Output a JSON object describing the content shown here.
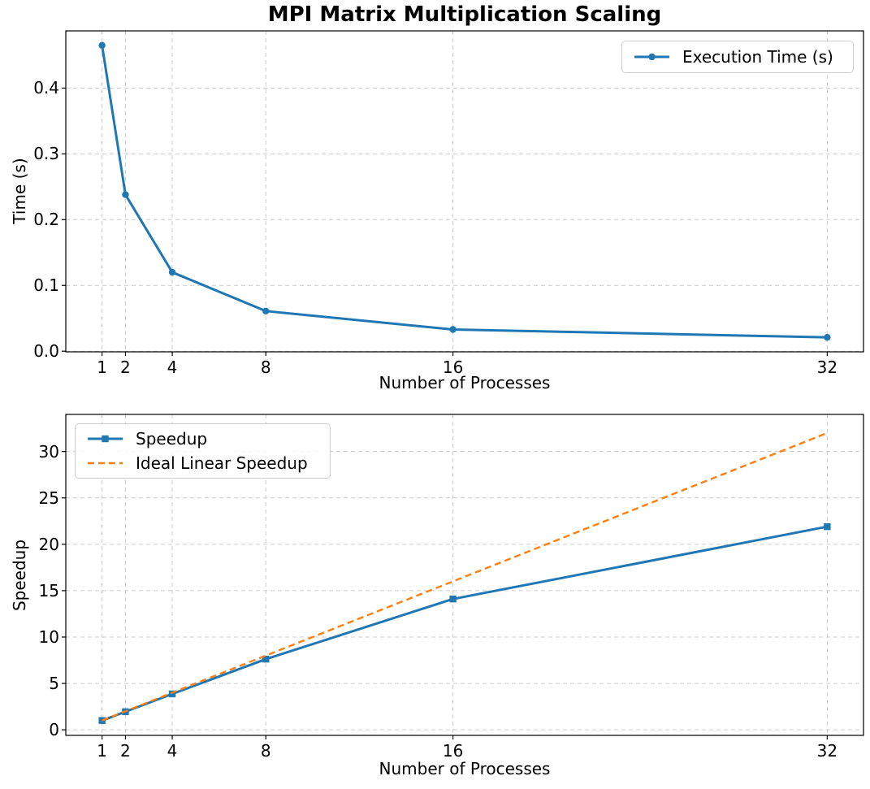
{
  "figure": {
    "title": "MPI Matrix Multiplication Scaling",
    "colors": {
      "series_blue": "#1f77b4",
      "series_orange": "#ff7f0e",
      "grid": "#cccccc",
      "spine": "#000000",
      "background": "#ffffff"
    }
  },
  "chart_data": [
    {
      "id": "time",
      "type": "line",
      "title": "MPI Matrix Multiplication Scaling",
      "xlabel": "Number of Processes",
      "ylabel": "Time (s)",
      "x": [
        1,
        2,
        4,
        8,
        16,
        32
      ],
      "xtick_labels": [
        "1",
        "2",
        "4",
        "8",
        "16",
        "32"
      ],
      "yticks": [
        0.0,
        0.1,
        0.2,
        0.3,
        0.4
      ],
      "ytick_labels": [
        "0.0",
        "0.1",
        "0.2",
        "0.3",
        "0.4"
      ],
      "xlim": [
        -0.55,
        33.55
      ],
      "ylim": [
        -0.001,
        0.487
      ],
      "grid": true,
      "legend_position": "upper right",
      "series": [
        {
          "name": "Execution Time (s)",
          "values": [
            0.465,
            0.238,
            0.12,
            0.061,
            0.033,
            0.021
          ],
          "color": "#1f77b4",
          "marker": "circle",
          "style": "solid"
        }
      ]
    },
    {
      "id": "speedup",
      "type": "line",
      "title": "",
      "xlabel": "Number of Processes",
      "ylabel": "Speedup",
      "x": [
        1,
        2,
        4,
        8,
        16,
        32
      ],
      "xtick_labels": [
        "1",
        "2",
        "4",
        "8",
        "16",
        "32"
      ],
      "yticks": [
        0,
        5,
        10,
        15,
        20,
        25,
        30
      ],
      "ytick_labels": [
        "0",
        "5",
        "10",
        "15",
        "20",
        "25",
        "30"
      ],
      "xlim": [
        -0.55,
        33.55
      ],
      "ylim": [
        -0.6,
        34.0
      ],
      "grid": true,
      "legend_position": "upper left",
      "series": [
        {
          "name": "Speedup",
          "values": [
            1.0,
            1.95,
            3.87,
            7.62,
            14.1,
            21.9
          ],
          "color": "#1f77b4",
          "marker": "square",
          "style": "solid"
        },
        {
          "name": "Ideal Linear Speedup",
          "values": [
            1,
            2,
            4,
            8,
            16,
            32
          ],
          "color": "#ff7f0e",
          "marker": "none",
          "style": "dashed"
        }
      ]
    }
  ]
}
